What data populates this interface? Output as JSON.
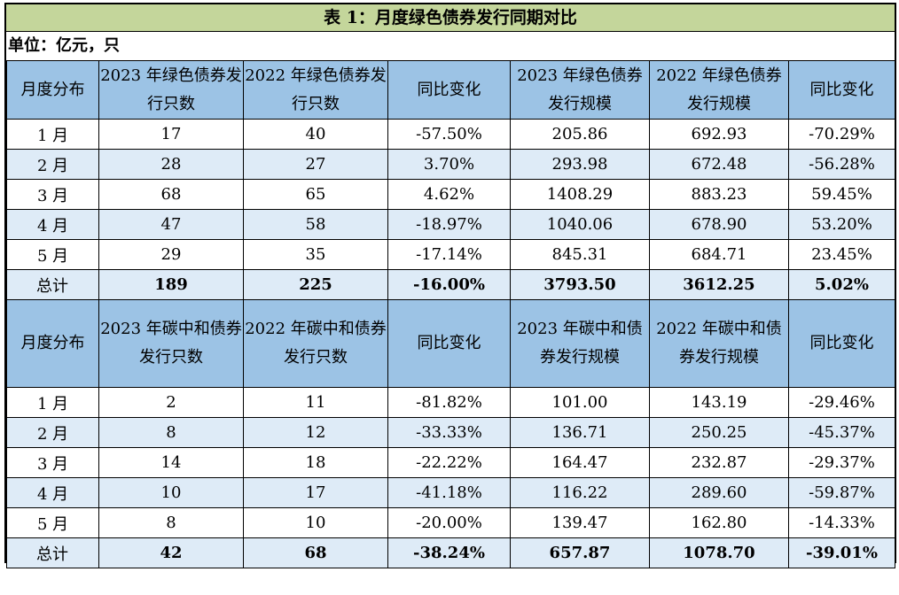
{
  "title": "表 1：月度绿色债券发行同期对比",
  "unit": "单位：亿元，只",
  "green": {
    "headers": [
      "月度分布",
      "2023 年绿色债券发行只数",
      "2022 年绿色债券发行只数",
      "同比变化",
      "2023 年绿色债券发行规模",
      "2022 年绿色债券发行规模",
      "同比变化"
    ],
    "rows": [
      [
        "1 月",
        "17",
        "40",
        "-57.50%",
        "205.86",
        "692.93",
        "-70.29%"
      ],
      [
        "2 月",
        "28",
        "27",
        "3.70%",
        "293.98",
        "672.48",
        "-56.28%"
      ],
      [
        "3 月",
        "68",
        "65",
        "4.62%",
        "1408.29",
        "883.23",
        "59.45%"
      ],
      [
        "4 月",
        "47",
        "58",
        "-18.97%",
        "1040.06",
        "678.90",
        "53.20%"
      ],
      [
        "5 月",
        "29",
        "35",
        "-17.14%",
        "845.31",
        "684.71",
        "23.45%"
      ]
    ],
    "total": [
      "总计",
      "189",
      "225",
      "-16.00%",
      "3793.50",
      "3612.25",
      "5.02%"
    ]
  },
  "carbon": {
    "headers": [
      "月度分布",
      "2023 年碳中和债券发行只数",
      "2022 年碳中和债券发行只数",
      "同比变化",
      "2023 年碳中和债券发行规模",
      "2022 年碳中和债券发行规模",
      "同比变化"
    ],
    "rows": [
      [
        "1 月",
        "2",
        "11",
        "-81.82%",
        "101.00",
        "143.19",
        "-29.46%"
      ],
      [
        "2 月",
        "8",
        "12",
        "-33.33%",
        "136.71",
        "250.25",
        "-45.37%"
      ],
      [
        "3 月",
        "14",
        "18",
        "-22.22%",
        "164.47",
        "232.87",
        "-29.37%"
      ],
      [
        "4 月",
        "10",
        "17",
        "-41.18%",
        "116.22",
        "289.60",
        "-59.87%"
      ],
      [
        "5 月",
        "8",
        "10",
        "-20.00%",
        "139.47",
        "162.80",
        "-14.33%"
      ]
    ],
    "total": [
      "总计",
      "42",
      "68",
      "-38.24%",
      "657.87",
      "1078.70",
      "-39.01%"
    ]
  }
}
